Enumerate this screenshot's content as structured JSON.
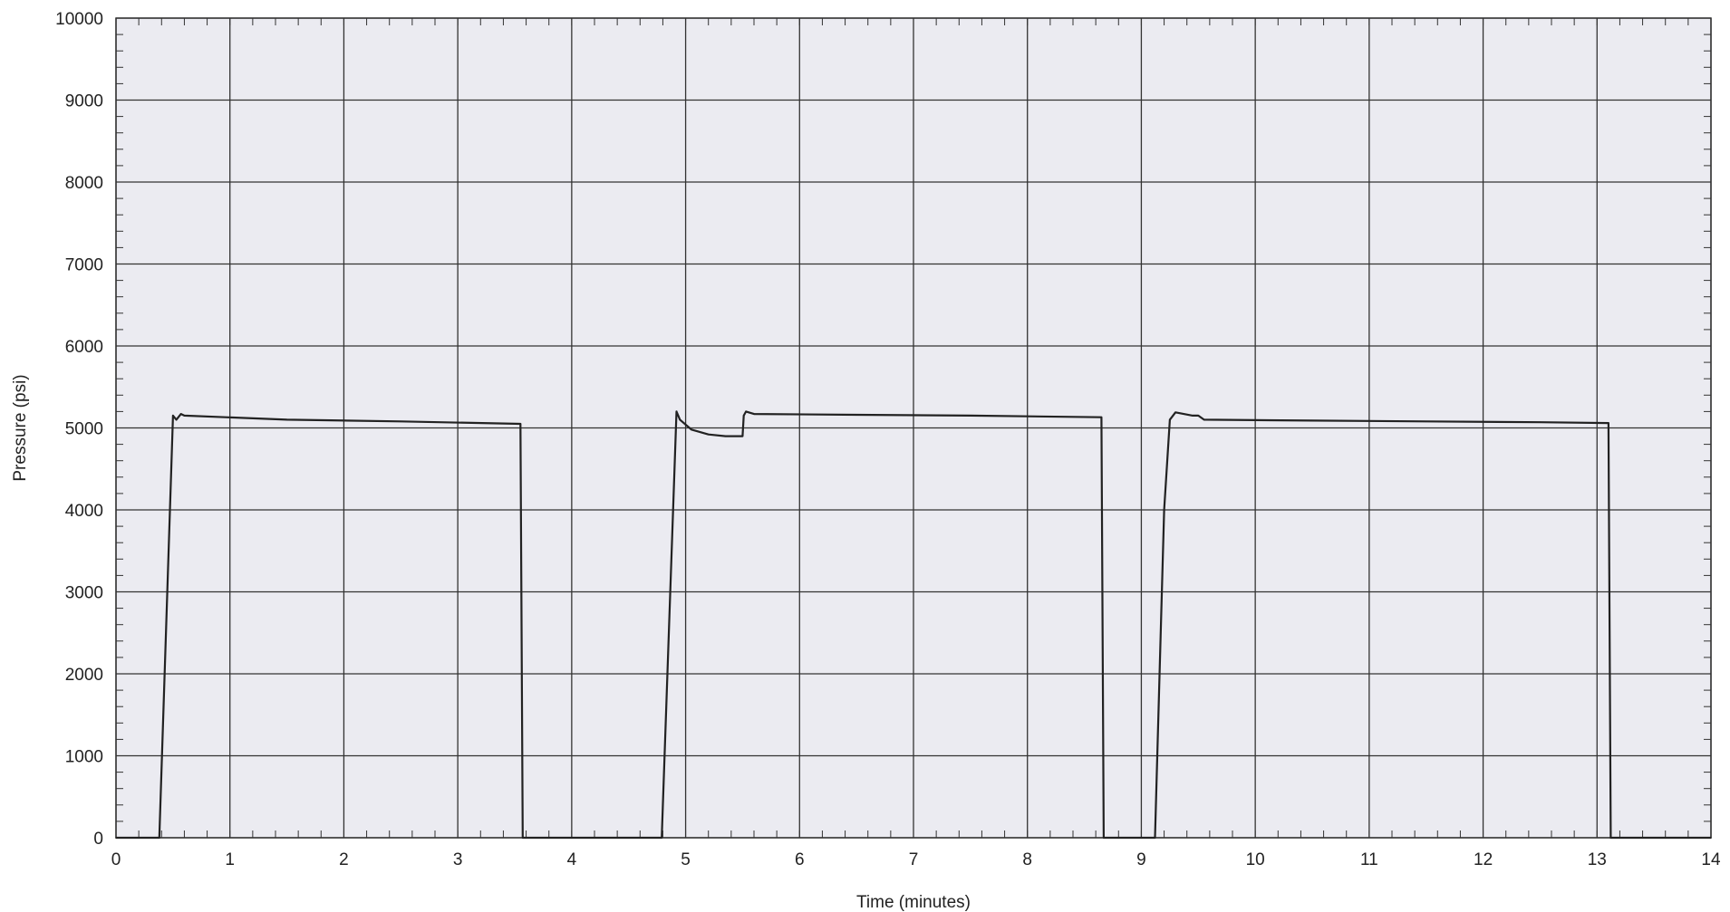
{
  "chart_data": {
    "type": "line",
    "title": "",
    "xlabel": "Time (minutes)",
    "ylabel": "Pressure (psi)",
    "xlim": [
      0,
      14
    ],
    "ylim": [
      0,
      10000
    ],
    "x_ticks": [
      0,
      1,
      2,
      3,
      4,
      5,
      6,
      7,
      8,
      9,
      10,
      11,
      12,
      13,
      14
    ],
    "y_ticks": [
      0,
      1000,
      2000,
      3000,
      4000,
      5000,
      6000,
      7000,
      8000,
      9000,
      10000
    ],
    "grid": true,
    "legend": "none",
    "colors": {
      "background": "#ebebf1",
      "grid": "#333333",
      "line": "#222222",
      "text": "#222222"
    },
    "series": [
      {
        "x": [
          0,
          0.38,
          0.5,
          0.53,
          0.57,
          0.6,
          1.5,
          2.5,
          3.55,
          3.57,
          4.79,
          4.92,
          4.95,
          5.05,
          5.2,
          5.35,
          5.5,
          5.51,
          5.53,
          5.6,
          6.5,
          7.5,
          8.65,
          8.67,
          9.12,
          9.2,
          9.25,
          9.3,
          9.45,
          9.5,
          9.55,
          10.5,
          11.5,
          12.5,
          13.1,
          13.12,
          14
        ],
        "y": [
          0,
          0,
          5150,
          5100,
          5170,
          5150,
          5100,
          5080,
          5050,
          0,
          0,
          5200,
          5100,
          4980,
          4920,
          4900,
          4900,
          5150,
          5200,
          5170,
          5160,
          5150,
          5130,
          0,
          0,
          4000,
          5100,
          5190,
          5150,
          5150,
          5100,
          5090,
          5080,
          5070,
          5060,
          0,
          0
        ]
      }
    ]
  }
}
